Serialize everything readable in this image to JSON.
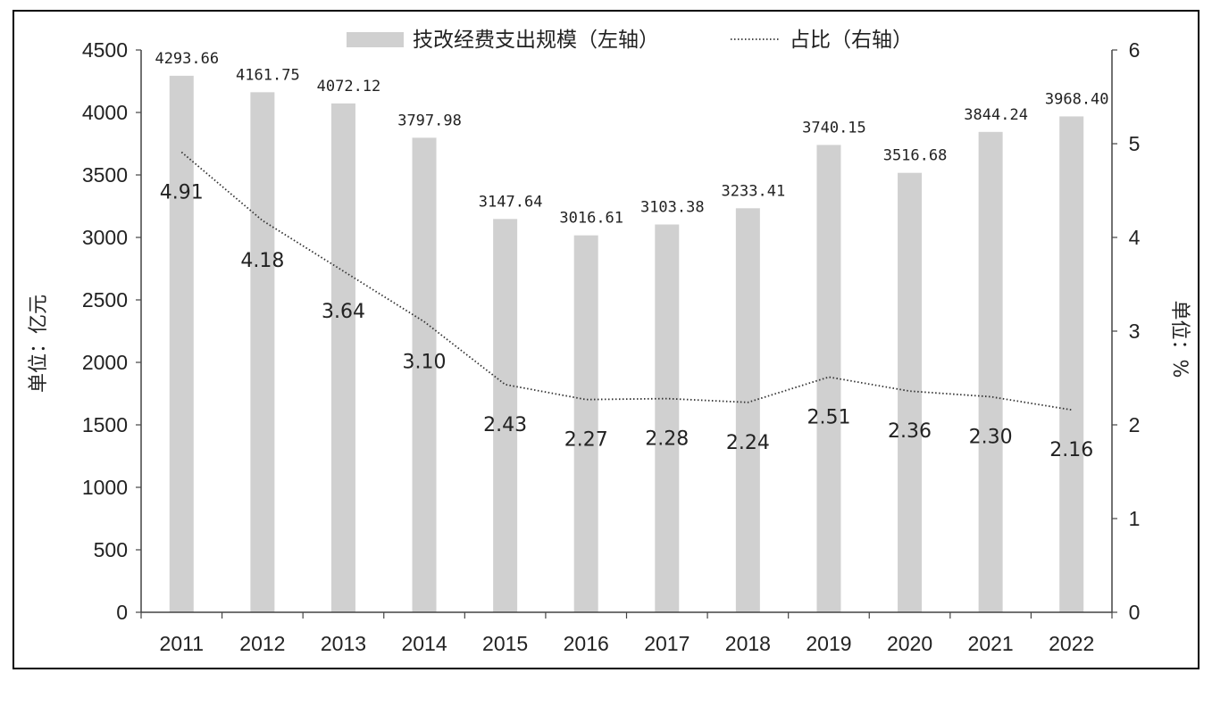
{
  "chart_data": {
    "type": "bar",
    "categories": [
      "2011",
      "2012",
      "2013",
      "2014",
      "2015",
      "2016",
      "2017",
      "2018",
      "2019",
      "2020",
      "2021",
      "2022"
    ],
    "series": [
      {
        "name": "技改经费支出规模（左轴）",
        "type": "bar",
        "axis": "left",
        "values": [
          4293.66,
          4161.75,
          4072.12,
          3797.98,
          3147.64,
          3016.61,
          3103.38,
          3233.41,
          3740.15,
          3516.68,
          3844.24,
          3968.4
        ],
        "labels": [
          "4293.66",
          "4161.75",
          "4072.12",
          "3797.98",
          "3147.64",
          "3016.61",
          "3103.38",
          "3233.41",
          "3740.15",
          "3516.68",
          "3844.24",
          "3968.40"
        ],
        "color": "#d0d0d0"
      },
      {
        "name": "占比（右轴）",
        "type": "line",
        "axis": "right",
        "values": [
          4.91,
          4.18,
          3.64,
          3.1,
          2.43,
          2.27,
          2.28,
          2.24,
          2.51,
          2.36,
          2.3,
          2.16
        ],
        "labels": [
          "4.91",
          "4.18",
          "3.64",
          "3.10",
          "2.43",
          "2.27",
          "2.28",
          "2.24",
          "2.51",
          "2.36",
          "2.30",
          "2.16"
        ],
        "color": "#333333",
        "style": "dotted"
      }
    ],
    "y_left": {
      "label": "单位：亿元",
      "ylim": [
        0,
        4500
      ],
      "ticks": [
        "0",
        "500",
        "1000",
        "1500",
        "2000",
        "2500",
        "3000",
        "3500",
        "4000",
        "4500"
      ]
    },
    "y_right": {
      "label": "单位：%",
      "ylim": [
        0,
        6
      ],
      "ticks": [
        "0",
        "1",
        "2",
        "3",
        "4",
        "5",
        "6"
      ]
    },
    "grid": false,
    "legend": "top-center"
  }
}
